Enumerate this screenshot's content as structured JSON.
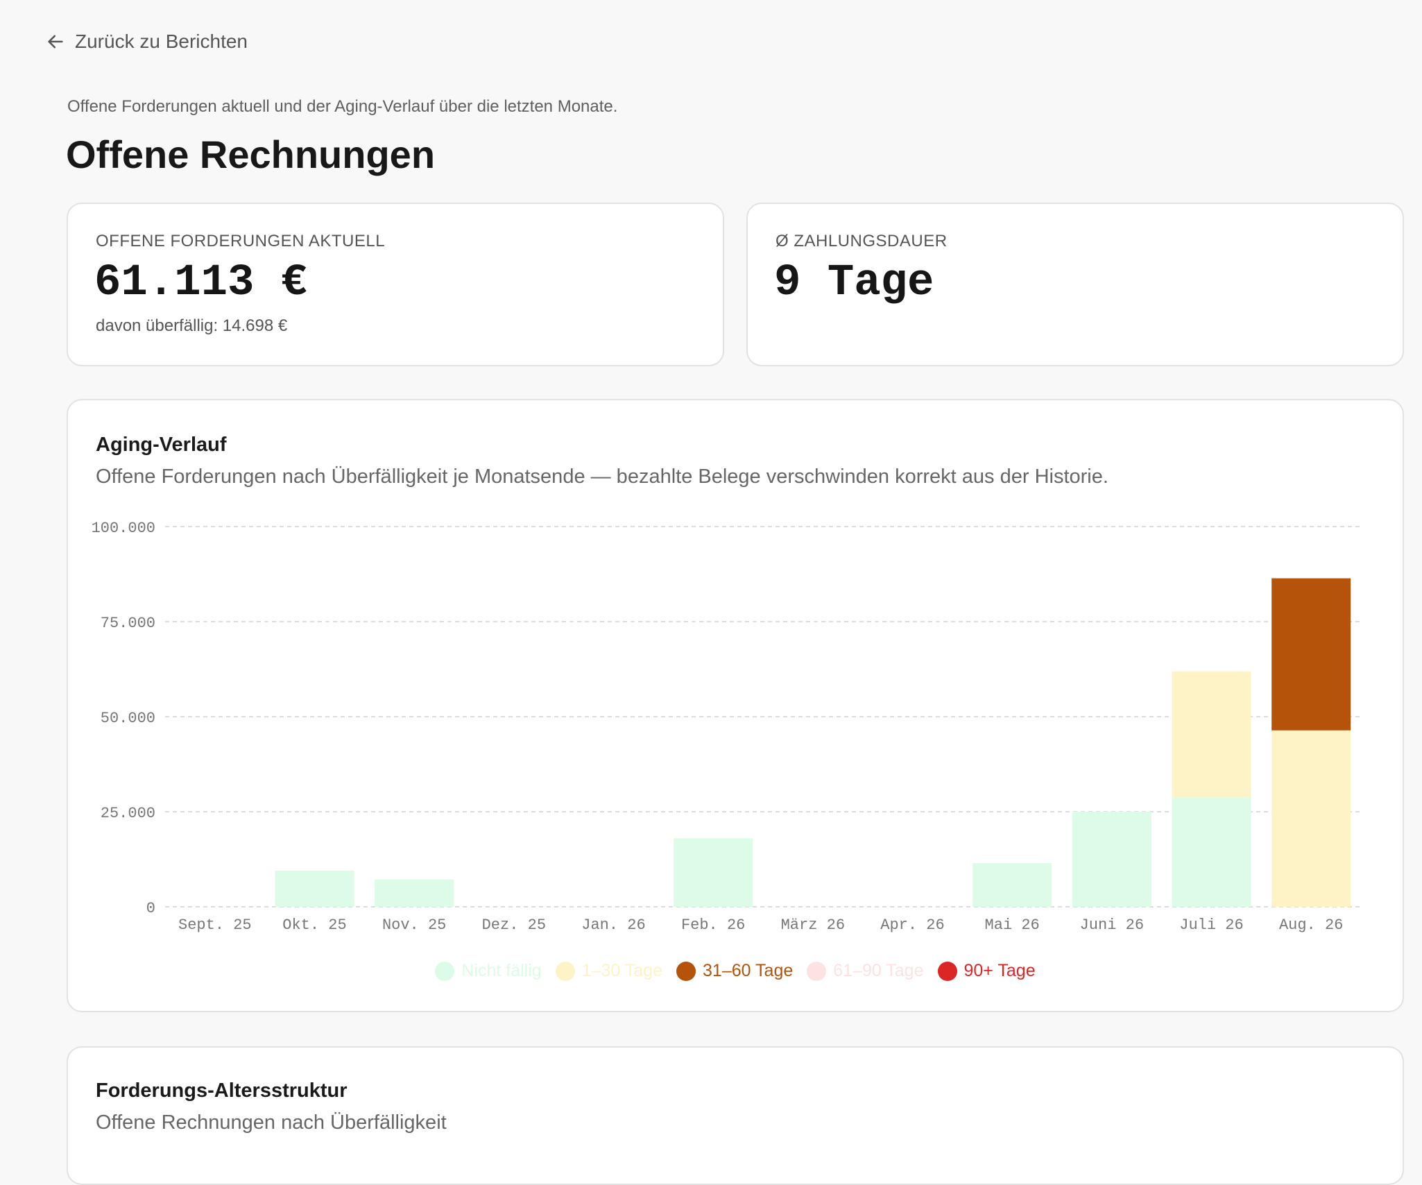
{
  "nav": {
    "back_label": "Zurück zu Berichten"
  },
  "header": {
    "subtitle": "Offene Forderungen aktuell und der Aging-Verlauf über die letzten Monate.",
    "title": "Offene Rechnungen"
  },
  "kpis": [
    {
      "label": "OFFENE FORDERUNGEN AKTUELL",
      "value": "61.113 €",
      "sub": "davon überfällig: 14.698 €"
    },
    {
      "label": "Ø ZAHLUNGSDAUER",
      "value": "9 Tage"
    }
  ],
  "aging_card": {
    "title": "Aging-Verlauf",
    "description": "Offene Forderungen nach Überfälligkeit je Monatsende — bezahlte Belege verschwinden korrekt aus der Historie."
  },
  "aging_structure_card": {
    "title": "Forderungs-Altersstruktur",
    "description": "Offene Rechnungen nach Überfälligkeit"
  },
  "chart_data": {
    "type": "bar",
    "stacked": true,
    "categories": [
      "Sept. 25",
      "Okt. 25",
      "Nov. 25",
      "Dez. 25",
      "Jan. 26",
      "Feb. 26",
      "März 26",
      "Apr. 26",
      "Mai 26",
      "Juni 26",
      "Juli 26",
      "Aug. 26"
    ],
    "series": [
      {
        "name": "Nicht fällig",
        "color": "#dcfce7",
        "values": [
          0,
          9500,
          7200,
          0,
          0,
          18000,
          0,
          0,
          11500,
          25000,
          28700,
          0
        ]
      },
      {
        "name": "1–30 Tage",
        "color": "#fef3c7",
        "values": [
          0,
          0,
          0,
          0,
          0,
          0,
          0,
          0,
          0,
          0,
          33200,
          46400
        ]
      },
      {
        "name": "31–60 Tage",
        "color": "#b45309",
        "values": [
          0,
          0,
          0,
          0,
          0,
          0,
          0,
          0,
          0,
          0,
          0,
          40000
        ]
      },
      {
        "name": "61–90 Tage",
        "color": "#fee2e2",
        "values": [
          0,
          0,
          0,
          0,
          0,
          0,
          0,
          0,
          0,
          0,
          0,
          0
        ]
      },
      {
        "name": "90+ Tage",
        "color": "#dc2626",
        "values": [
          0,
          0,
          0,
          0,
          0,
          0,
          0,
          0,
          0,
          0,
          0,
          0
        ]
      }
    ],
    "y_ticks": [
      "0",
      "25.000",
      "50.000",
      "75.000",
      "100.000"
    ],
    "ylim": [
      0,
      100000
    ],
    "grid": true,
    "legend_position": "bottom"
  }
}
